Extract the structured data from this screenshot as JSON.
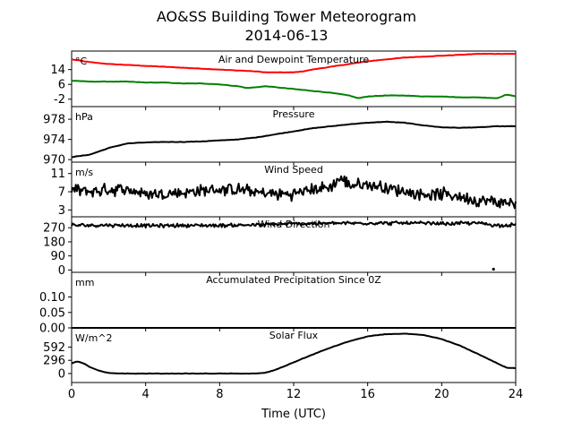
{
  "figure": {
    "title": "AO&SS Building Tower Meteorogram",
    "date": "2014-06-13",
    "xlabel": "Time (UTC)"
  },
  "chart_data": [
    {
      "type": "line",
      "title": "Air and Dewpoint Temperature",
      "unit": "°C",
      "xlim": [
        0,
        24
      ],
      "ylim": [
        -6,
        24
      ],
      "yticks": [
        14,
        6,
        -2
      ],
      "series": [
        {
          "color": "#ff0000",
          "x": [
            0,
            1,
            2,
            3,
            4,
            5,
            6,
            7,
            8,
            9,
            10,
            10.5,
            11,
            12,
            12.5,
            13,
            14,
            15,
            16,
            17,
            18,
            19,
            20,
            21,
            22,
            23,
            24
          ],
          "y": [
            19.5,
            18,
            17,
            16.5,
            16,
            15.5,
            15,
            14.5,
            14,
            13.5,
            13,
            12.5,
            12.5,
            12.5,
            13,
            14,
            15.5,
            17,
            18.5,
            19.5,
            20.5,
            21,
            21.5,
            22,
            22.5,
            22.5,
            22.5
          ]
        },
        {
          "color": "#008000",
          "x": [
            0,
            1,
            2,
            3,
            4,
            5,
            6,
            7,
            8,
            9,
            9.5,
            10,
            10.5,
            11,
            12,
            13,
            14,
            15,
            15.5,
            16,
            17,
            18,
            19,
            20,
            21,
            22,
            23,
            23.5,
            24
          ],
          "y": [
            8,
            7.5,
            7.5,
            7.5,
            7,
            7,
            6.5,
            6.5,
            6,
            5,
            4,
            4.5,
            5,
            4.5,
            3.5,
            2.5,
            1.5,
            0,
            -1.5,
            -0.5,
            0,
            0,
            -0.5,
            -0.5,
            -1,
            -1,
            -1.5,
            0.5,
            -0.5
          ]
        }
      ]
    },
    {
      "type": "line",
      "title": "Pressure",
      "unit": "hPa",
      "xlim": [
        0,
        24
      ],
      "ylim": [
        969.5,
        980.5
      ],
      "yticks": [
        978,
        974,
        970
      ],
      "series": [
        {
          "color": "#000000",
          "x": [
            0,
            1,
            2,
            3,
            4,
            5,
            6,
            7,
            8,
            9,
            10,
            11,
            12,
            13,
            14,
            15,
            16,
            17,
            18,
            19,
            20,
            21,
            22,
            23,
            24
          ],
          "y": [
            970.5,
            971,
            972.3,
            973.2,
            973.4,
            973.5,
            973.5,
            973.6,
            973.8,
            974,
            974.4,
            975,
            975.6,
            976.2,
            976.6,
            977,
            977.3,
            977.5,
            977.3,
            976.8,
            976.4,
            976.3,
            976.4,
            976.6,
            976.6
          ]
        }
      ]
    },
    {
      "type": "line",
      "title": "Wind Speed",
      "unit": "m/s",
      "xlim": [
        0,
        24
      ],
      "ylim": [
        1.5,
        13.5
      ],
      "yticks": [
        11,
        7,
        3
      ],
      "series": [
        {
          "color": "#000000",
          "x": [
            0,
            1,
            2,
            3,
            4,
            5,
            6,
            7,
            8,
            9,
            10,
            11,
            12,
            13,
            14,
            14.5,
            15,
            16,
            17,
            18,
            19,
            20,
            21,
            22,
            23,
            24
          ],
          "y": [
            7.5,
            7,
            7.5,
            7.5,
            6.5,
            6.5,
            6.8,
            7.2,
            7.5,
            7.5,
            6.8,
            6.5,
            6.5,
            7.5,
            8,
            10,
            8.5,
            8.5,
            8,
            7,
            6.5,
            6.5,
            6,
            5,
            4.8,
            4.5
          ],
          "jitter": 1.6
        }
      ]
    },
    {
      "type": "line",
      "title": "Wind Direction",
      "unit": "",
      "xlim": [
        0,
        24
      ],
      "ylim": [
        -15,
        340
      ],
      "yticks": [
        270,
        180,
        90,
        0
      ],
      "series": [
        {
          "color": "#000000",
          "x": [
            0,
            2,
            4,
            6,
            8,
            10,
            12,
            14,
            16,
            18,
            20,
            22,
            23,
            24
          ],
          "y": [
            285,
            287,
            283,
            285,
            285,
            288,
            295,
            298,
            300,
            300,
            296,
            300,
            285,
            290
          ],
          "jitter": 14
        }
      ],
      "points": [
        {
          "x": 22.8,
          "y": 5
        }
      ]
    },
    {
      "type": "line",
      "title": "Accumulated Precipitation Since 0Z",
      "unit": "mm",
      "xlim": [
        0,
        24
      ],
      "ylim": [
        0,
        0.18
      ],
      "yticks": [
        0.1,
        0.05,
        0.0
      ],
      "yticklabels": [
        "0.10",
        "0.05",
        "0.00"
      ],
      "series": [
        {
          "color": "#000000",
          "x": [
            0,
            24
          ],
          "y": [
            0,
            0
          ]
        }
      ]
    },
    {
      "type": "line",
      "title": "Solar Flux",
      "unit": "W/m^2",
      "xlim": [
        0,
        24
      ],
      "ylim": [
        -200,
        1020
      ],
      "yticks": [
        592,
        296,
        0
      ],
      "series": [
        {
          "color": "#000000",
          "x": [
            0,
            0.3,
            0.7,
            1,
            1.5,
            2,
            3,
            4,
            5,
            6,
            7,
            8,
            9,
            10,
            10.5,
            11,
            12,
            13,
            14,
            15,
            16,
            17,
            18,
            19,
            20,
            21,
            22,
            23,
            23.5,
            24
          ],
          "y": [
            230,
            270,
            220,
            140,
            60,
            10,
            0,
            0,
            0,
            0,
            0,
            0,
            0,
            0,
            20,
            80,
            250,
            420,
            580,
            720,
            830,
            880,
            890,
            860,
            770,
            620,
            430,
            230,
            130,
            120
          ]
        }
      ]
    }
  ],
  "xticks": [
    0,
    4,
    8,
    12,
    16,
    20,
    24
  ]
}
